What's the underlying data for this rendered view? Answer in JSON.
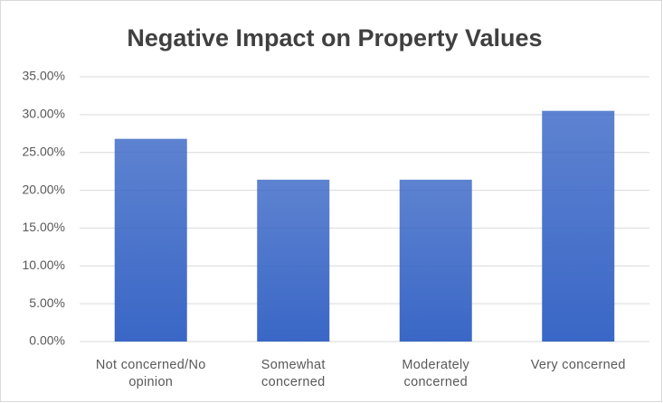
{
  "chart_data": {
    "type": "bar",
    "title": "Negative Impact on Property Values",
    "categories": [
      "Not concerned/No opinion",
      "Somewhat concerned",
      "Moderately concerned",
      "Very concerned"
    ],
    "values": [
      26.8,
      21.4,
      21.4,
      30.5
    ],
    "color": "#3a67c6",
    "ylim": [
      0,
      35
    ],
    "yticks": [
      {
        "value": 0,
        "label": "0.00%"
      },
      {
        "value": 5,
        "label": "5.00%"
      },
      {
        "value": 10,
        "label": "10.00%"
      },
      {
        "value": 15,
        "label": "15.00%"
      },
      {
        "value": 20,
        "label": "20.00%"
      },
      {
        "value": 25,
        "label": "25.00%"
      },
      {
        "value": 30,
        "label": "30.00%"
      },
      {
        "value": 35,
        "label": "35.00%"
      }
    ],
    "grid": true
  }
}
